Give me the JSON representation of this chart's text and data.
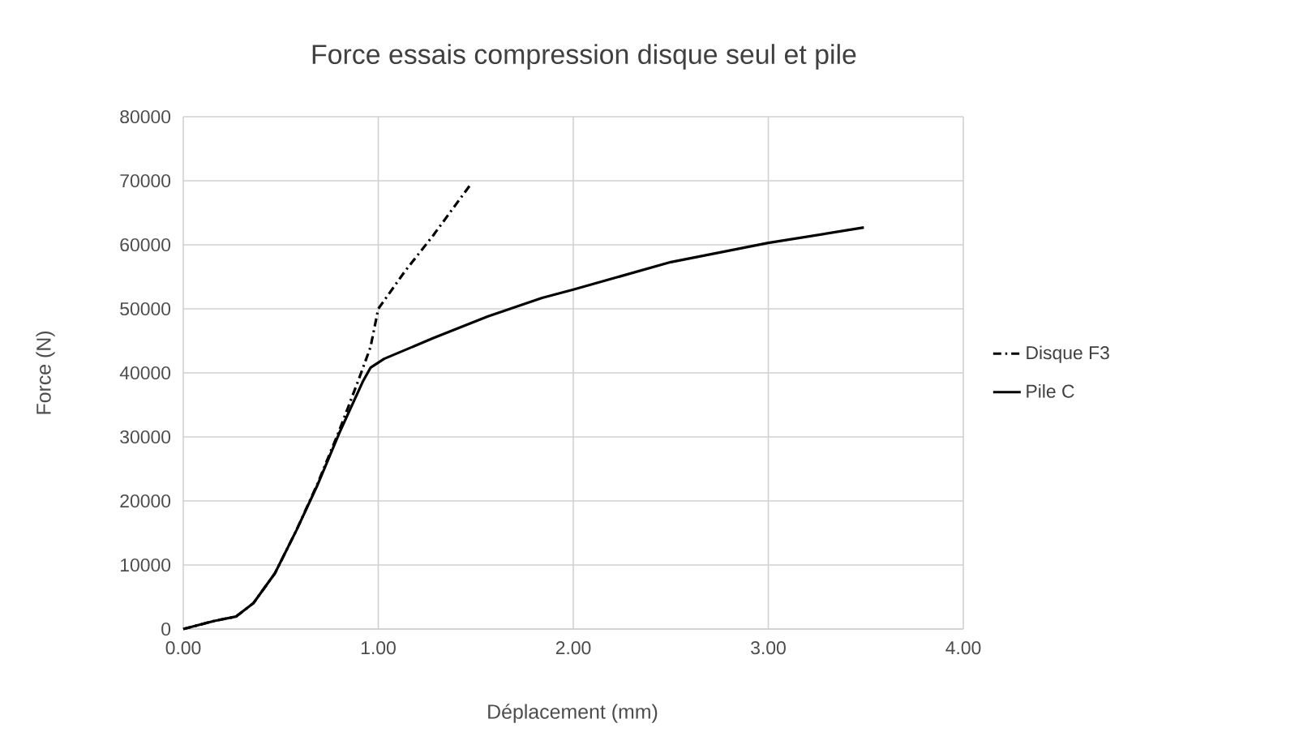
{
  "chart_data": {
    "type": "line",
    "title": "Force essais compression disque seul et pile",
    "xlabel": "Déplacement (mm)",
    "ylabel": "Force (N)",
    "xlim": [
      0,
      4
    ],
    "xticks": [
      {
        "value": 0,
        "label": "0.00"
      },
      {
        "value": 1,
        "label": "1.00"
      },
      {
        "value": 2,
        "label": "2.00"
      },
      {
        "value": 3,
        "label": "3.00"
      },
      {
        "value": 4,
        "label": "4.00"
      }
    ],
    "ylim": [
      0,
      80000
    ],
    "yticks": [
      0,
      10000,
      20000,
      30000,
      40000,
      50000,
      60000,
      70000,
      80000
    ],
    "grid": true,
    "legend": "right",
    "marker": "none",
    "series": [
      {
        "name": "Disque F3",
        "color": "#000000",
        "line_style": "dashdot",
        "x": [
          0,
          0.16,
          0.27,
          0.36,
          0.47,
          0.58,
          0.69,
          0.8,
          0.9,
          0.96,
          1.0,
          1.14,
          1.28,
          1.48
        ],
        "values": [
          0,
          1270,
          1940,
          4050,
          8700,
          15400,
          22800,
          31000,
          39000,
          44000,
          50000,
          56000,
          61400,
          69700
        ]
      },
      {
        "name": "Pile C",
        "color": "#000000",
        "line_style": "solid",
        "x": [
          0,
          0.16,
          0.27,
          0.36,
          0.47,
          0.58,
          0.69,
          0.8,
          0.92,
          0.96,
          1.03,
          1.28,
          1.56,
          1.84,
          2.0,
          2.5,
          3.0,
          3.49
        ],
        "values": [
          0,
          1270,
          1940,
          4050,
          8700,
          15400,
          22600,
          30600,
          38600,
          40800,
          42200,
          45400,
          48800,
          51700,
          53000,
          57300,
          60300,
          62700
        ]
      }
    ]
  }
}
